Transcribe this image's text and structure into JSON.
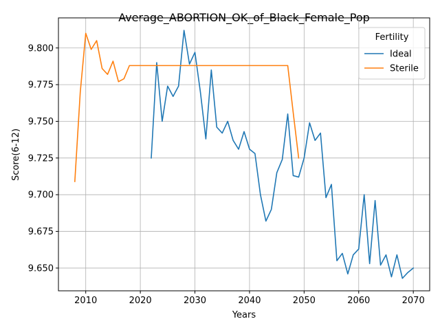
{
  "chart_data": {
    "type": "line",
    "title": "Average_ABORTION_OK_of_Black_Female_Pop",
    "xlabel": "Years",
    "ylabel": "Score(6-12)",
    "xlim": [
      2005,
      2073
    ],
    "ylim": [
      9.6345,
      9.8205
    ],
    "xticks": [
      2010,
      2020,
      2030,
      2040,
      2050,
      2060,
      2070
    ],
    "yticks": [
      9.65,
      9.675,
      9.7,
      9.725,
      9.75,
      9.775,
      9.8
    ],
    "ytick_labels": [
      "9.650",
      "9.675",
      "9.700",
      "9.725",
      "9.750",
      "9.775",
      "9.800"
    ],
    "grid": true,
    "legend": {
      "title": "Fertility",
      "placement": "top-right"
    },
    "series": [
      {
        "name": "Ideal",
        "color": "#1f77b4",
        "x": [
          2022,
          2023,
          2024,
          2025,
          2026,
          2027,
          2028,
          2029,
          2030,
          2031,
          2032,
          2033,
          2034,
          2035,
          2036,
          2037,
          2038,
          2039,
          2040,
          2041,
          2042,
          2043,
          2044,
          2045,
          2046,
          2047,
          2048,
          2049,
          2050,
          2051,
          2052,
          2053,
          2054,
          2055,
          2056,
          2057,
          2058,
          2059,
          2060,
          2061,
          2062,
          2063,
          2064,
          2065,
          2066,
          2067,
          2068,
          2069,
          2070
        ],
        "values": [
          9.725,
          9.79,
          9.75,
          9.774,
          9.767,
          9.774,
          9.812,
          9.789,
          9.797,
          9.77,
          9.738,
          9.785,
          9.746,
          9.742,
          9.75,
          9.737,
          9.731,
          9.743,
          9.731,
          9.728,
          9.7,
          9.682,
          9.69,
          9.715,
          9.724,
          9.755,
          9.713,
          9.712,
          9.725,
          9.749,
          9.737,
          9.742,
          9.698,
          9.707,
          9.655,
          9.66,
          9.646,
          9.659,
          9.663,
          9.7,
          9.653,
          9.696,
          9.652,
          9.659,
          9.644,
          9.659,
          9.643,
          9.647,
          9.65
        ]
      },
      {
        "name": "Sterile",
        "color": "#ff7f0e",
        "x": [
          2008,
          2009,
          2010,
          2011,
          2012,
          2013,
          2014,
          2015,
          2016,
          2017,
          2018,
          2019,
          2020,
          2021,
          2022,
          2023,
          2024,
          2025,
          2026,
          2027,
          2028,
          2029,
          2030,
          2031,
          2032,
          2033,
          2034,
          2035,
          2036,
          2037,
          2038,
          2039,
          2040,
          2041,
          2042,
          2043,
          2044,
          2045,
          2046,
          2047,
          2048,
          2049
        ],
        "values": [
          9.709,
          9.77,
          9.81,
          9.799,
          9.805,
          9.786,
          9.782,
          9.791,
          9.777,
          9.779,
          9.788,
          9.788,
          9.788,
          9.788,
          9.788,
          9.788,
          9.788,
          9.788,
          9.788,
          9.788,
          9.788,
          9.788,
          9.788,
          9.788,
          9.788,
          9.788,
          9.788,
          9.788,
          9.788,
          9.788,
          9.788,
          9.788,
          9.788,
          9.788,
          9.788,
          9.788,
          9.788,
          9.788,
          9.788,
          9.788,
          9.756,
          9.725
        ]
      }
    ]
  }
}
